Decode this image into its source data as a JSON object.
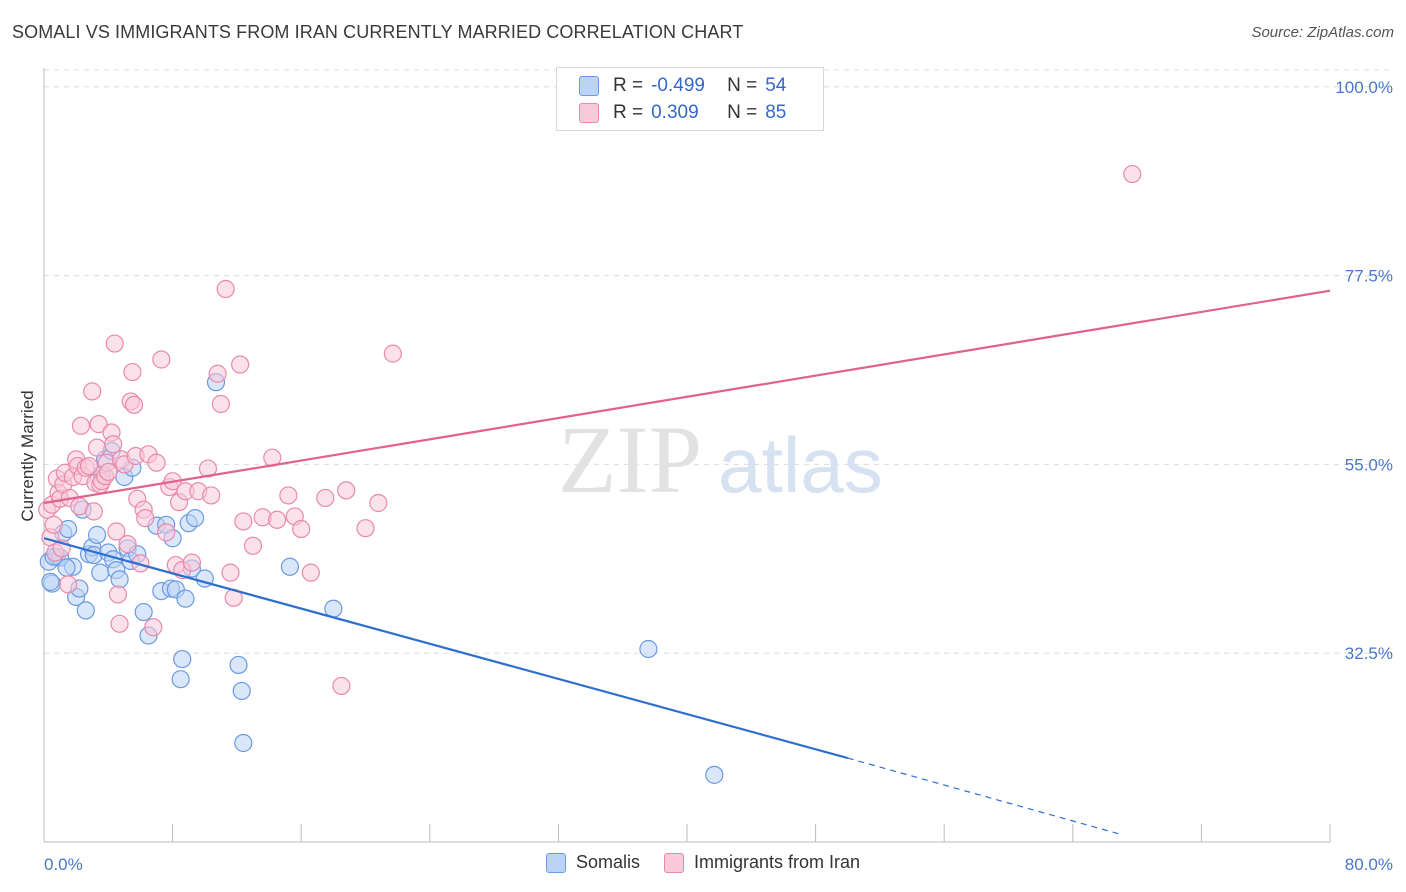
{
  "title": "SOMALI VS IMMIGRANTS FROM IRAN CURRENTLY MARRIED CORRELATION CHART",
  "source": "Source: ZipAtlas.com",
  "watermark": {
    "zip": "ZIP",
    "atlas": "atlas"
  },
  "legend": {
    "rows": [
      {
        "r_label": "R =",
        "r_value": "-0.499",
        "n_label": "N =",
        "n_value": "54",
        "color": "#6a9be0",
        "fill": "#bcd3f5"
      },
      {
        "r_label": "R =",
        "r_value": "0.309",
        "n_label": "N =",
        "n_value": "85",
        "color": "#e98aaa",
        "fill": "#f8c9d8"
      }
    ]
  },
  "bottom_legend": [
    "Somalis",
    "Immigrants from Iran"
  ],
  "chart_data": {
    "type": "scatter",
    "title": "SOMALI VS IMMIGRANTS FROM IRAN CURRENTLY MARRIED CORRELATION CHART",
    "xlabel": "",
    "ylabel": "Currently Married",
    "xlim": [
      0,
      80
    ],
    "ylim": [
      10,
      102
    ],
    "x_tick_labels": [
      "0.0%",
      "80.0%"
    ],
    "y_ticks": [
      32.5,
      55.0,
      77.5,
      100.0
    ],
    "y_tick_labels": [
      "32.5%",
      "55.0%",
      "77.5%",
      "100.0%"
    ],
    "grid": "horizontal dashed",
    "legend_position": "top-center",
    "series": [
      {
        "name": "Somalis",
        "color": "#6a9be0",
        "fill": "#bcd3f5",
        "line_color": "#2f6fcf",
        "trend": {
          "x0": 0,
          "y0": 46.2,
          "x1": 50,
          "y1": 20.0,
          "dash_to_x": 67,
          "dash_to_y": 10.9
        },
        "points": [
          [
            0.3,
            43.4
          ],
          [
            0.5,
            40.8
          ],
          [
            0.8,
            44.0
          ],
          [
            1.2,
            46.8
          ],
          [
            1.0,
            43.9
          ],
          [
            1.5,
            47.3
          ],
          [
            1.8,
            42.8
          ],
          [
            2.0,
            39.2
          ],
          [
            2.2,
            40.2
          ],
          [
            2.4,
            49.6
          ],
          [
            2.6,
            37.6
          ],
          [
            2.8,
            44.3
          ],
          [
            3.0,
            45.1
          ],
          [
            3.1,
            44.2
          ],
          [
            3.3,
            46.6
          ],
          [
            3.5,
            42.1
          ],
          [
            3.6,
            53.8
          ],
          [
            3.8,
            55.6
          ],
          [
            4.0,
            44.5
          ],
          [
            4.2,
            56.6
          ],
          [
            4.3,
            43.7
          ],
          [
            4.5,
            42.4
          ],
          [
            4.7,
            41.3
          ],
          [
            5.0,
            53.5
          ],
          [
            5.2,
            45.0
          ],
          [
            5.4,
            43.5
          ],
          [
            5.5,
            54.6
          ],
          [
            5.8,
            44.3
          ],
          [
            6.2,
            37.4
          ],
          [
            6.5,
            34.6
          ],
          [
            7.0,
            47.7
          ],
          [
            7.3,
            39.9
          ],
          [
            7.6,
            47.8
          ],
          [
            7.9,
            40.2
          ],
          [
            8.0,
            46.2
          ],
          [
            8.2,
            40.1
          ],
          [
            8.5,
            29.4
          ],
          [
            8.6,
            31.8
          ],
          [
            8.8,
            39.0
          ],
          [
            9.0,
            48.0
          ],
          [
            9.2,
            42.6
          ],
          [
            9.4,
            48.6
          ],
          [
            10.0,
            41.4
          ],
          [
            10.7,
            64.8
          ],
          [
            12.1,
            31.1
          ],
          [
            12.3,
            28.0
          ],
          [
            12.4,
            21.8
          ],
          [
            15.3,
            42.8
          ],
          [
            18.0,
            37.8
          ],
          [
            37.6,
            33.0
          ],
          [
            41.7,
            18.0
          ],
          [
            0.4,
            41.0
          ],
          [
            0.6,
            44.0
          ],
          [
            1.4,
            42.7
          ]
        ]
      },
      {
        "name": "Immigrants from Iran",
        "color": "#e98aaa",
        "fill": "#f8c9d8",
        "line_color": "#e0628d",
        "trend": {
          "x0": 0,
          "y0": 50.4,
          "x1": 80,
          "y1": 75.7
        },
        "points": [
          [
            0.2,
            49.6
          ],
          [
            0.4,
            46.3
          ],
          [
            0.5,
            50.2
          ],
          [
            0.6,
            47.8
          ],
          [
            0.7,
            44.5
          ],
          [
            0.8,
            53.3
          ],
          [
            0.9,
            51.6
          ],
          [
            1.0,
            50.9
          ],
          [
            1.1,
            45.0
          ],
          [
            1.2,
            52.6
          ],
          [
            1.3,
            54.0
          ],
          [
            1.5,
            40.7
          ],
          [
            1.6,
            51.0
          ],
          [
            1.8,
            53.5
          ],
          [
            2.0,
            55.6
          ],
          [
            2.1,
            54.8
          ],
          [
            2.2,
            50.0
          ],
          [
            2.3,
            59.6
          ],
          [
            2.4,
            53.6
          ],
          [
            2.6,
            54.6
          ],
          [
            2.8,
            54.8
          ],
          [
            3.0,
            63.7
          ],
          [
            3.1,
            49.4
          ],
          [
            3.2,
            52.8
          ],
          [
            3.4,
            59.8
          ],
          [
            3.5,
            52.6
          ],
          [
            3.6,
            53.0
          ],
          [
            3.8,
            53.6
          ],
          [
            3.9,
            55.2
          ],
          [
            4.0,
            54.1
          ],
          [
            4.2,
            58.8
          ],
          [
            4.3,
            57.4
          ],
          [
            4.4,
            69.4
          ],
          [
            4.5,
            47.0
          ],
          [
            4.6,
            39.5
          ],
          [
            4.7,
            36.0
          ],
          [
            4.8,
            55.6
          ],
          [
            5.0,
            55.0
          ],
          [
            5.2,
            45.5
          ],
          [
            5.4,
            62.5
          ],
          [
            5.5,
            66.0
          ],
          [
            5.6,
            62.1
          ],
          [
            5.7,
            56.0
          ],
          [
            5.8,
            50.9
          ],
          [
            6.0,
            43.2
          ],
          [
            6.2,
            49.6
          ],
          [
            6.3,
            48.6
          ],
          [
            6.5,
            56.2
          ],
          [
            6.8,
            35.6
          ],
          [
            7.0,
            55.2
          ],
          [
            7.3,
            67.5
          ],
          [
            7.6,
            46.9
          ],
          [
            7.8,
            52.3
          ],
          [
            8.0,
            53.0
          ],
          [
            8.2,
            43.0
          ],
          [
            8.4,
            50.5
          ],
          [
            8.6,
            42.4
          ],
          [
            8.8,
            51.8
          ],
          [
            9.2,
            43.3
          ],
          [
            9.6,
            51.8
          ],
          [
            10.2,
            54.5
          ],
          [
            10.4,
            51.3
          ],
          [
            10.8,
            65.8
          ],
          [
            11.0,
            62.2
          ],
          [
            11.3,
            75.9
          ],
          [
            11.6,
            42.1
          ],
          [
            11.8,
            39.1
          ],
          [
            12.2,
            66.9
          ],
          [
            12.4,
            48.2
          ],
          [
            13.0,
            45.3
          ],
          [
            13.6,
            48.7
          ],
          [
            14.2,
            55.8
          ],
          [
            14.5,
            48.4
          ],
          [
            15.2,
            51.3
          ],
          [
            15.6,
            48.8
          ],
          [
            16.0,
            47.3
          ],
          [
            16.6,
            42.1
          ],
          [
            17.5,
            51.0
          ],
          [
            18.5,
            28.6
          ],
          [
            18.8,
            51.9
          ],
          [
            20.0,
            47.4
          ],
          [
            20.8,
            50.4
          ],
          [
            21.7,
            68.2
          ],
          [
            67.7,
            89.6
          ],
          [
            3.3,
            57.0
          ]
        ]
      }
    ]
  }
}
